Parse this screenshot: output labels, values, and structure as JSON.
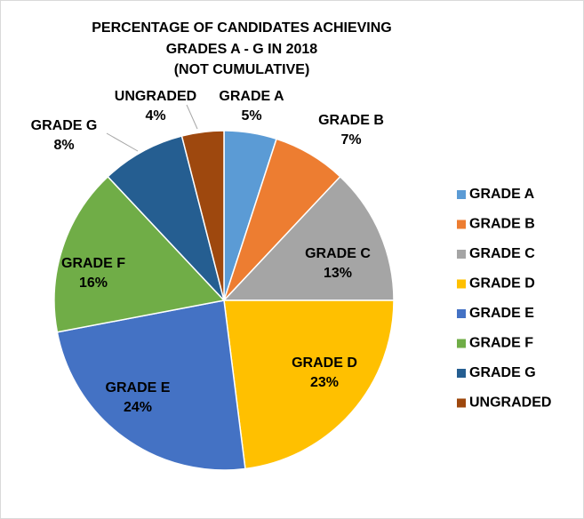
{
  "chart_data": {
    "type": "pie",
    "title": [
      "PERCENTAGE OF CANDIDATES ACHIEVING",
      "GRADES A - G IN 2018",
      "(NOT CUMULATIVE)"
    ],
    "categories": [
      "GRADE A",
      "GRADE B",
      "GRADE C",
      "GRADE D",
      "GRADE E",
      "GRADE F",
      "GRADE G",
      "UNGRADED"
    ],
    "values": [
      5,
      7,
      13,
      23,
      24,
      16,
      8,
      4
    ],
    "value_labels": [
      "5%",
      "7%",
      "13%",
      "23%",
      "24%",
      "16%",
      "8%",
      "4%"
    ],
    "colors": [
      "#5b9bd5",
      "#ed7d31",
      "#a5a5a5",
      "#ffc000",
      "#4472c4",
      "#70ad47",
      "#255e91",
      "#9e480e"
    ],
    "legend": "right"
  }
}
